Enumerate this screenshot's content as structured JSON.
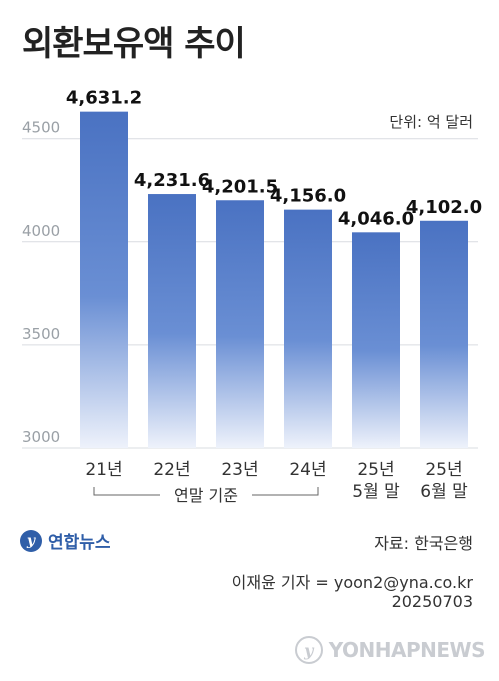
{
  "title": "외환보유액 추이",
  "unit": "단위: 억 달러",
  "bracket_label": "연말 기준",
  "source": "자료: 한국은행",
  "credit_line1": "이재윤 기자 = yoon2@yna.co.kr",
  "credit_line2": "20250703",
  "logo_text": "연합뉴스",
  "watermark_text": "YONHAPNEWS",
  "colors": {
    "bar_top": "#4a72c2",
    "bar_bottom": "#eef2fb",
    "brand": "#2f5ea8"
  },
  "chart_data": {
    "type": "bar",
    "title": "외환보유액 추이",
    "ylabel": "",
    "xlabel": "",
    "ylim": [
      3000,
      4700
    ],
    "yticks": [
      3000,
      3500,
      4000,
      4500
    ],
    "categories": [
      [
        "21년"
      ],
      [
        "22년"
      ],
      [
        "23년"
      ],
      [
        "24년"
      ],
      [
        "25년",
        "5월 말"
      ],
      [
        "25년",
        "6월 말"
      ]
    ],
    "values": [
      4631.2,
      4231.6,
      4201.5,
      4156.0,
      4046.0,
      4102.0
    ],
    "value_labels": [
      "4,631.2",
      "4,231.6",
      "4,201.5",
      "4,156.0",
      "4,046.0",
      "4,102.0"
    ],
    "grid": true
  }
}
